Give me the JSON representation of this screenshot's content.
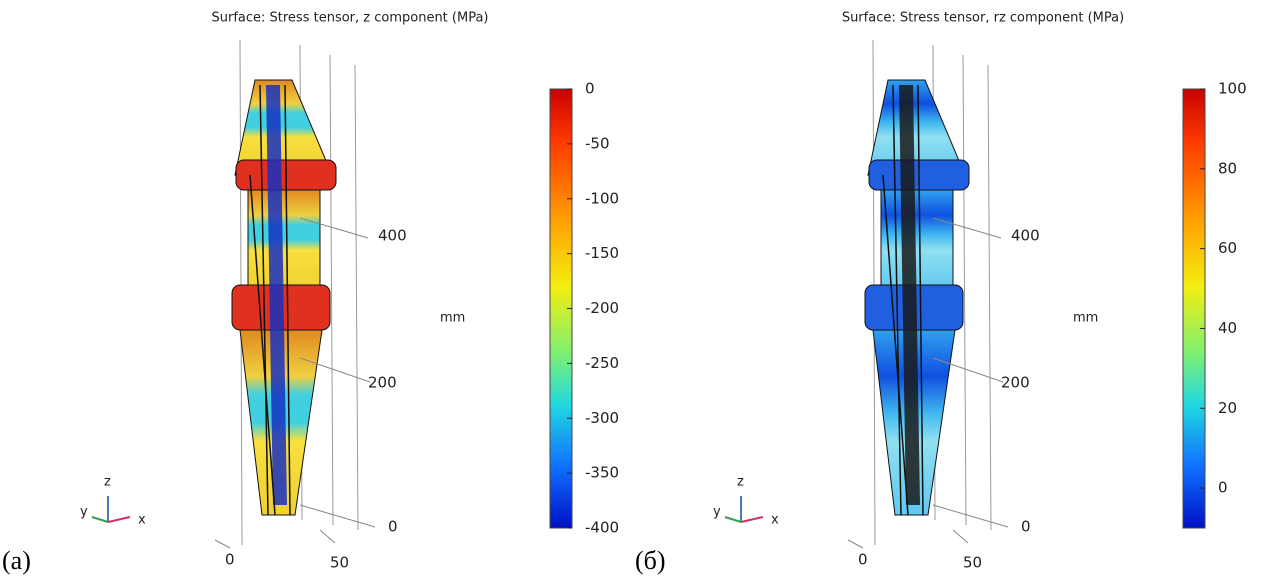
{
  "panels": [
    {
      "label": "(a)",
      "title": "Surface: Stress tensor, z component (MPa)",
      "colorbar": {
        "range": [
          -400,
          0
        ],
        "ticks": [
          0,
          -50,
          -100,
          -150,
          -200,
          -250,
          -300,
          -350,
          -400
        ]
      },
      "unit": "mm",
      "z_ticks": [
        400,
        200,
        0
      ],
      "x_ticks": [
        0,
        50
      ],
      "triad": [
        "z",
        "y",
        "x"
      ]
    },
    {
      "label": "(б)",
      "title": "Surface: Stress tensor, rz component (MPa)",
      "colorbar": {
        "range": [
          -10,
          100
        ],
        "ticks": [
          100,
          80,
          60,
          40,
          20,
          0
        ]
      },
      "unit": "mm",
      "z_ticks": [
        400,
        200,
        0
      ],
      "x_ticks": [
        0,
        50
      ],
      "triad": [
        "z",
        "y",
        "x"
      ]
    }
  ]
}
